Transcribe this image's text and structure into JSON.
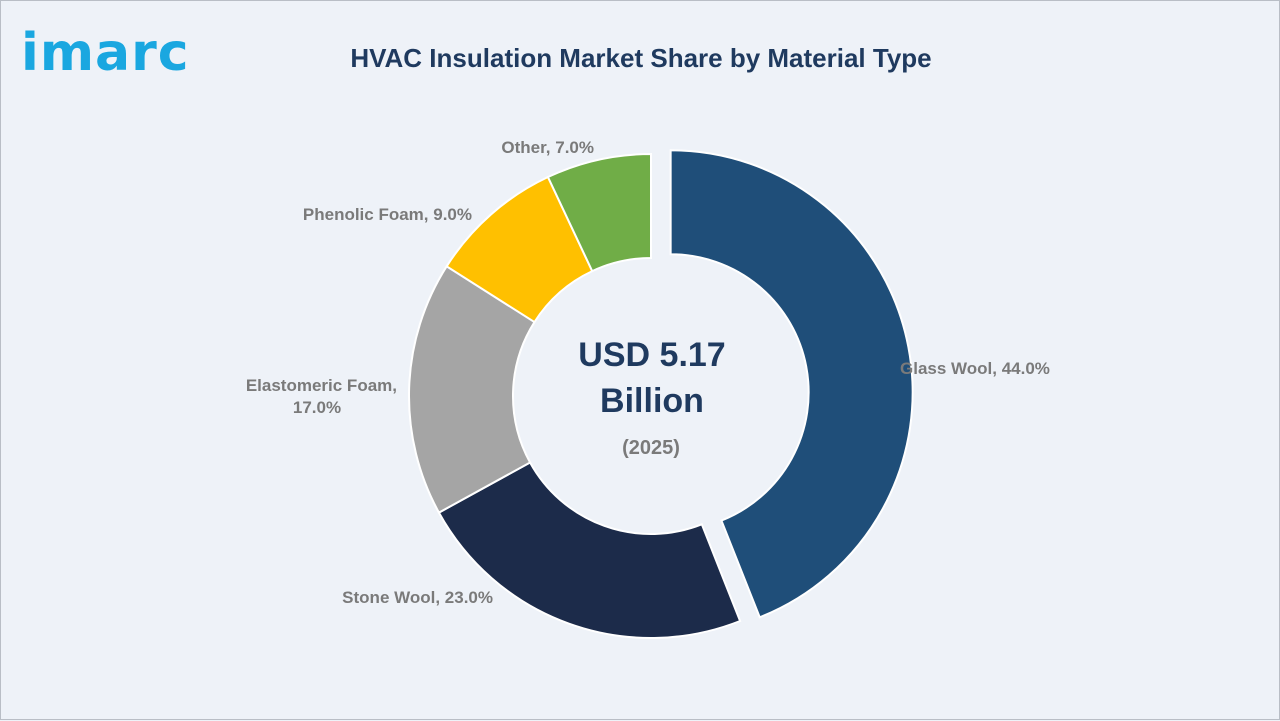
{
  "brand": {
    "logo_text": "imarc",
    "logo_color": "#1aa7e0"
  },
  "chart_data": {
    "type": "pie",
    "variant": "donut",
    "title": "HVAC Insulation Market Share by Material Type",
    "center_text": {
      "line1": "USD 5.17",
      "line2": "Billion",
      "line3": "(2025)"
    },
    "categories": [
      "Glass Wool",
      "Stone Wool",
      "Elastomeric Foam",
      "Phenolic Foam",
      "Other"
    ],
    "values": [
      44.0,
      23.0,
      17.0,
      9.0,
      7.0
    ],
    "unit": "%",
    "data_labels": [
      [
        "Glass Wool, 44.0%"
      ],
      [
        "Stone Wool, 23.0%"
      ],
      [
        "Elastomeric Foam,",
        "17.0%"
      ],
      [
        "Phenolic Foam, 9.0%"
      ],
      [
        "Other, 7.0%"
      ]
    ],
    "colors": [
      "#1f4e79",
      "#1c2b4a",
      "#a5a5a5",
      "#ffc000",
      "#70ad47"
    ],
    "exploded_slice": "Glass Wool",
    "start_angle": "12 o'clock",
    "direction": "clockwise",
    "legend": "none"
  }
}
